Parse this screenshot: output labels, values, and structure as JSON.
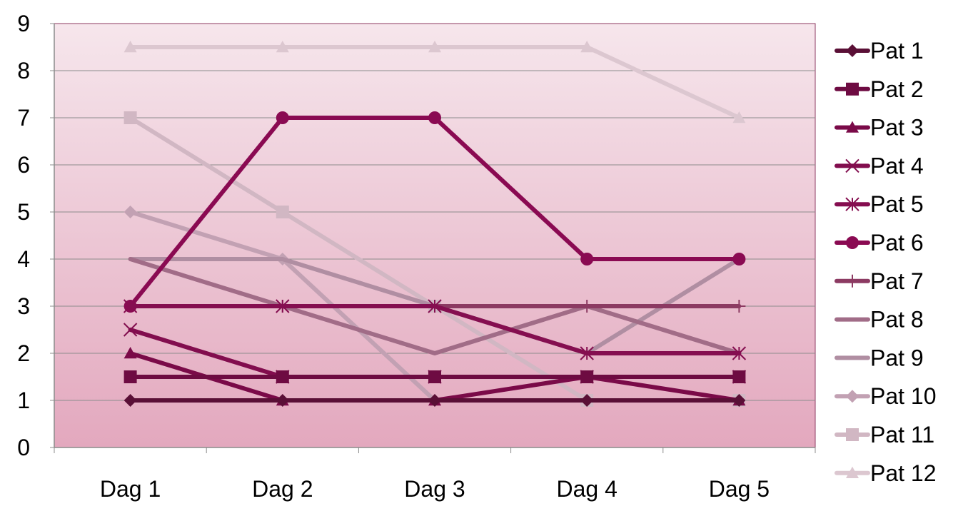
{
  "chart_data": {
    "type": "line",
    "title": "",
    "xlabel": "",
    "ylabel": "",
    "categories": [
      "Dag 1",
      "Dag 2",
      "Dag 3",
      "Dag 4",
      "Dag 5"
    ],
    "ylim": [
      0,
      9
    ],
    "yticks": [
      "0",
      "1",
      "2",
      "3",
      "4",
      "5",
      "6",
      "7",
      "8",
      "9"
    ],
    "grid": true,
    "legend_position": "right",
    "background_gradient": [
      "#f6e6ec",
      "#e3a8be"
    ],
    "series": [
      {
        "name": "Pat 1",
        "values": [
          1,
          1,
          1,
          1,
          1
        ],
        "marker": "diamond",
        "color": "#5a0f36"
      },
      {
        "name": "Pat 2",
        "values": [
          1.5,
          1.5,
          1.5,
          1.5,
          1.5
        ],
        "marker": "square",
        "color": "#6e0b42"
      },
      {
        "name": "Pat 3",
        "values": [
          2,
          1,
          1,
          1.5,
          1
        ],
        "marker": "triangle",
        "color": "#7a0a48"
      },
      {
        "name": "Pat 4",
        "values": [
          2.5,
          1.5,
          1.5,
          1.5,
          1.5
        ],
        "marker": "x",
        "color": "#820d4e"
      },
      {
        "name": "Pat 5",
        "values": [
          3,
          3,
          3,
          2,
          2
        ],
        "marker": "star",
        "color": "#850e50"
      },
      {
        "name": "Pat 6",
        "values": [
          3,
          7,
          7,
          4,
          4
        ],
        "marker": "circle",
        "color": "#8a0a52"
      },
      {
        "name": "Pat 7",
        "values": [
          3,
          3,
          3,
          3,
          3
        ],
        "marker": "plus",
        "color": "#8c3a62"
      },
      {
        "name": "Pat 8",
        "values": [
          4,
          3,
          2,
          3,
          2
        ],
        "marker": "none",
        "color": "#a16c87"
      },
      {
        "name": "Pat 9",
        "values": [
          4,
          4,
          3,
          2,
          4
        ],
        "marker": "none",
        "color": "#b08ea2"
      },
      {
        "name": "Pat 10",
        "values": [
          5,
          4,
          1,
          1,
          1
        ],
        "marker": "diamond",
        "color": "#c2a1b3"
      },
      {
        "name": "Pat 11",
        "values": [
          7,
          5,
          3,
          1,
          1
        ],
        "marker": "square",
        "color": "#d1b7c3"
      },
      {
        "name": "Pat 12",
        "values": [
          8.5,
          8.5,
          8.5,
          8.5,
          7
        ],
        "marker": "triangle",
        "color": "#dcc7d0"
      }
    ]
  }
}
